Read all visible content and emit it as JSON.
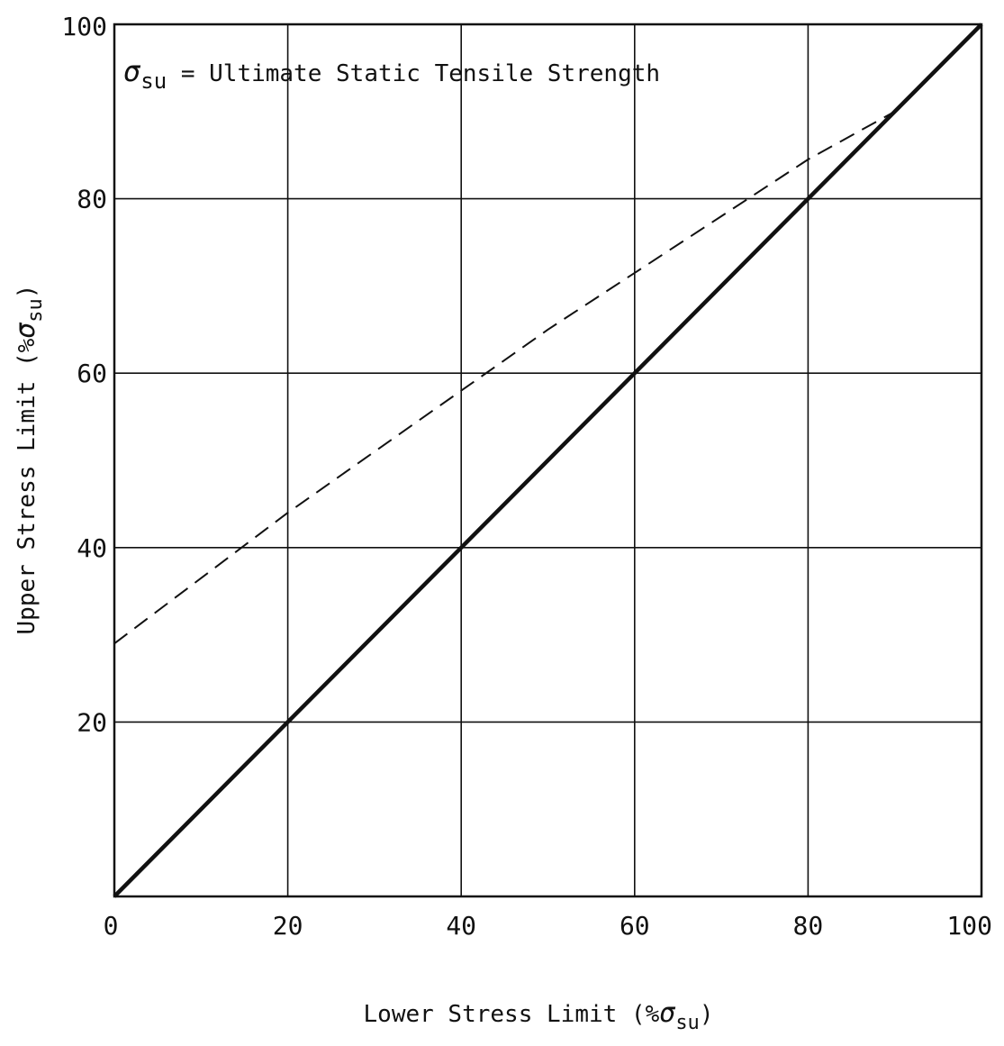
{
  "chart_data": {
    "type": "line",
    "title": "",
    "annotation": {
      "symbol": "σ",
      "subscript": "su",
      "text": " = Ultimate Static Tensile Strength"
    },
    "xlabel": {
      "text": "Lower Stress Limit (%",
      "symbol": "σ",
      "subscript": "su",
      "close": ")"
    },
    "ylabel": {
      "text": "Upper Stress Limit (%",
      "symbol": "σ",
      "subscript": "su",
      "close": ")"
    },
    "xlim": [
      0,
      100
    ],
    "ylim": [
      0,
      100
    ],
    "xticks": [
      "0",
      "20",
      "40",
      "60",
      "80",
      "100"
    ],
    "yticks": [
      "20",
      "40",
      "60",
      "80",
      "100"
    ],
    "grid": true,
    "series": [
      {
        "style": "solid",
        "x": [
          0,
          100
        ],
        "y": [
          0,
          100
        ]
      },
      {
        "style": "dashed",
        "x": [
          0,
          10,
          20,
          30,
          40,
          50,
          60,
          70,
          80,
          90
        ],
        "y": [
          29,
          36.5,
          44,
          51,
          58,
          65,
          71.5,
          78,
          84.5,
          90
        ]
      }
    ]
  }
}
